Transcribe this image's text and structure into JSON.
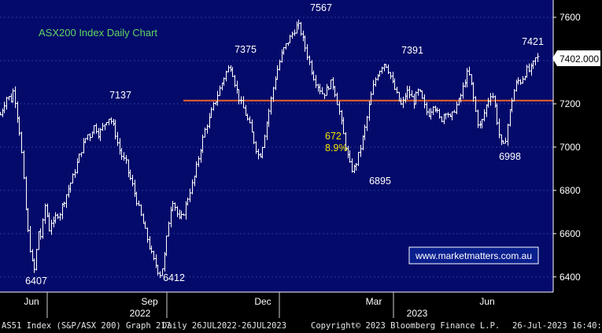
{
  "chart_data": {
    "type": "ohlc",
    "title": "ASX200 Index Daily Chart",
    "watermark": "www.marketmatters.com.au",
    "y_ticks": [
      6400,
      6600,
      6800,
      7000,
      7200,
      7400,
      7600
    ],
    "ylim": [
      6330,
      7680
    ],
    "x_ticks": [
      "Jun",
      "Sep",
      "Dec",
      "Mar",
      "Jun"
    ],
    "x_years": [
      "2022",
      "2023"
    ],
    "last_price": "7402.000",
    "support_line": 7215,
    "move_annotation": {
      "points": "672",
      "percent": "8.9%"
    },
    "price_labels": [
      {
        "text": "7137",
        "value": 7137
      },
      {
        "text": "7375",
        "value": 7375
      },
      {
        "text": "7567",
        "value": 7567
      },
      {
        "text": "7391",
        "value": 7391
      },
      {
        "text": "7421",
        "value": 7421
      },
      {
        "text": "6407",
        "value": 6407
      },
      {
        "text": "6412",
        "value": 6412
      },
      {
        "text": "6895",
        "value": 6895
      },
      {
        "text": "6998",
        "value": 6998
      }
    ],
    "series": [
      {
        "path": [
          [
            0,
            7150
          ],
          [
            5,
            7200
          ],
          [
            10,
            7250
          ],
          [
            12,
            7180
          ],
          [
            15,
            7270
          ],
          [
            18,
            7230
          ],
          [
            21,
            7150
          ],
          [
            24,
            7070
          ],
          [
            27,
            6950
          ],
          [
            30,
            6800
          ],
          [
            33,
            6650
          ],
          [
            36,
            6560
          ],
          [
            39,
            6480
          ],
          [
            42,
            6420
          ],
          [
            44,
            6480
          ],
          [
            46,
            6560
          ],
          [
            48,
            6620
          ],
          [
            50,
            6580
          ],
          [
            53,
            6650
          ],
          [
            56,
            6740
          ],
          [
            58,
            6690
          ],
          [
            61,
            6620
          ],
          [
            64,
            6660
          ],
          [
            67,
            6640
          ],
          [
            70,
            6700
          ],
          [
            73,
            6680
          ],
          [
            76,
            6720
          ],
          [
            80,
            6760
          ],
          [
            85,
            6810
          ],
          [
            90,
            6860
          ],
          [
            95,
            6920
          ],
          [
            100,
            6980
          ],
          [
            105,
            7030
          ],
          [
            108,
            7060
          ],
          [
            111,
            7050
          ],
          [
            115,
            7090
          ],
          [
            118,
            7100
          ],
          [
            121,
            7060
          ],
          [
            124,
            7070
          ],
          [
            127,
            7090
          ],
          [
            130,
            7110
          ],
          [
            133,
            7130
          ],
          [
            136,
            7137
          ],
          [
            139,
            7110
          ],
          [
            142,
            7080
          ],
          [
            145,
            7030
          ],
          [
            148,
            6990
          ],
          [
            151,
            6960
          ],
          [
            153,
            6930
          ],
          [
            155,
            6960
          ],
          [
            157,
            6910
          ],
          [
            160,
            6870
          ],
          [
            163,
            6840
          ],
          [
            166,
            6800
          ],
          [
            169,
            6760
          ],
          [
            172,
            6720
          ],
          [
            175,
            6680
          ],
          [
            178,
            6640
          ],
          [
            181,
            6600
          ],
          [
            184,
            6560
          ],
          [
            187,
            6520
          ],
          [
            190,
            6480
          ],
          [
            193,
            6460
          ],
          [
            196,
            6430
          ],
          [
            199,
            6412
          ],
          [
            202,
            6450
          ],
          [
            205,
            6520
          ],
          [
            208,
            6620
          ],
          [
            211,
            6700
          ],
          [
            214,
            6760
          ],
          [
            217,
            6730
          ],
          [
            220,
            6690
          ],
          [
            223,
            6660
          ],
          [
            226,
            6680
          ],
          [
            229,
            6710
          ],
          [
            232,
            6750
          ],
          [
            235,
            6790
          ],
          [
            238,
            6820
          ],
          [
            241,
            6860
          ],
          [
            244,
            6910
          ],
          [
            247,
            6960
          ],
          [
            250,
            7010
          ],
          [
            253,
            7060
          ],
          [
            256,
            7100
          ],
          [
            259,
            7120
          ],
          [
            262,
            7160
          ],
          [
            265,
            7190
          ],
          [
            268,
            7220
          ],
          [
            271,
            7250
          ],
          [
            274,
            7280
          ],
          [
            277,
            7310
          ],
          [
            280,
            7340
          ],
          [
            283,
            7360
          ],
          [
            286,
            7375
          ],
          [
            289,
            7340
          ],
          [
            292,
            7290
          ],
          [
            295,
            7250
          ],
          [
            298,
            7210
          ],
          [
            301,
            7190
          ],
          [
            304,
            7160
          ],
          [
            307,
            7130
          ],
          [
            310,
            7100
          ],
          [
            313,
            7060
          ],
          [
            316,
            7020
          ],
          [
            319,
            6980
          ],
          [
            322,
            6950
          ],
          [
            325,
            6990
          ],
          [
            328,
            7050
          ],
          [
            331,
            7110
          ],
          [
            334,
            7170
          ],
          [
            337,
            7230
          ],
          [
            340,
            7290
          ],
          [
            343,
            7340
          ],
          [
            346,
            7380
          ],
          [
            349,
            7420
          ],
          [
            352,
            7450
          ],
          [
            355,
            7470
          ],
          [
            358,
            7490
          ],
          [
            361,
            7510
          ],
          [
            364,
            7530
          ],
          [
            367,
            7550
          ],
          [
            370,
            7567
          ],
          [
            373,
            7540
          ],
          [
            376,
            7500
          ],
          [
            379,
            7460
          ],
          [
            382,
            7420
          ],
          [
            385,
            7380
          ],
          [
            388,
            7340
          ],
          [
            391,
            7310
          ],
          [
            394,
            7290
          ],
          [
            397,
            7270
          ],
          [
            400,
            7250
          ],
          [
            403,
            7250
          ],
          [
            406,
            7270
          ],
          [
            409,
            7290
          ],
          [
            412,
            7300
          ],
          [
            415,
            7270
          ],
          [
            418,
            7220
          ],
          [
            421,
            7170
          ],
          [
            424,
            7110
          ],
          [
            427,
            7050
          ],
          [
            430,
            6990
          ],
          [
            433,
            6940
          ],
          [
            436,
            6900
          ],
          [
            439,
            6895
          ],
          [
            442,
            6920
          ],
          [
            445,
            6960
          ],
          [
            448,
            7000
          ],
          [
            451,
            7050
          ],
          [
            454,
            7100
          ],
          [
            457,
            7160
          ],
          [
            460,
            7220
          ],
          [
            463,
            7270
          ],
          [
            466,
            7310
          ],
          [
            469,
            7340
          ],
          [
            472,
            7360
          ],
          [
            475,
            7380
          ],
          [
            478,
            7391
          ],
          [
            481,
            7370
          ],
          [
            484,
            7340
          ],
          [
            487,
            7300
          ],
          [
            490,
            7270
          ],
          [
            493,
            7240
          ],
          [
            496,
            7210
          ],
          [
            499,
            7190
          ],
          [
            502,
            7220
          ],
          [
            505,
            7260
          ],
          [
            508,
            7250
          ],
          [
            511,
            7230
          ],
          [
            514,
            7210
          ],
          [
            517,
            7240
          ],
          [
            520,
            7260
          ],
          [
            523,
            7240
          ],
          [
            526,
            7200
          ],
          [
            529,
            7170
          ],
          [
            532,
            7150
          ],
          [
            535,
            7170
          ],
          [
            538,
            7200
          ],
          [
            541,
            7180
          ],
          [
            544,
            7150
          ],
          [
            547,
            7120
          ],
          [
            550,
            7140
          ],
          [
            553,
            7170
          ],
          [
            556,
            7160
          ],
          [
            559,
            7130
          ],
          [
            562,
            7150
          ],
          [
            565,
            7180
          ],
          [
            568,
            7200
          ],
          [
            571,
            7220
          ],
          [
            574,
            7260
          ],
          [
            577,
            7300
          ],
          [
            580,
            7340
          ],
          [
            583,
            7330
          ],
          [
            586,
            7280
          ],
          [
            589,
            7210
          ],
          [
            592,
            7140
          ],
          [
            595,
            7090
          ],
          [
            598,
            7110
          ],
          [
            601,
            7150
          ],
          [
            604,
            7190
          ],
          [
            607,
            7220
          ],
          [
            610,
            7250
          ],
          [
            613,
            7230
          ],
          [
            616,
            7160
          ],
          [
            619,
            7080
          ],
          [
            622,
            7020
          ],
          [
            625,
            6998
          ],
          [
            628,
            7040
          ],
          [
            631,
            7110
          ],
          [
            634,
            7180
          ],
          [
            637,
            7240
          ],
          [
            640,
            7280
          ],
          [
            643,
            7310
          ],
          [
            646,
            7300
          ],
          [
            649,
            7320
          ],
          [
            652,
            7340
          ],
          [
            655,
            7360
          ],
          [
            658,
            7350
          ],
          [
            661,
            7370
          ],
          [
            664,
            7400
          ],
          [
            667,
            7421
          ],
          [
            669,
            7402
          ]
        ]
      }
    ]
  }
}
